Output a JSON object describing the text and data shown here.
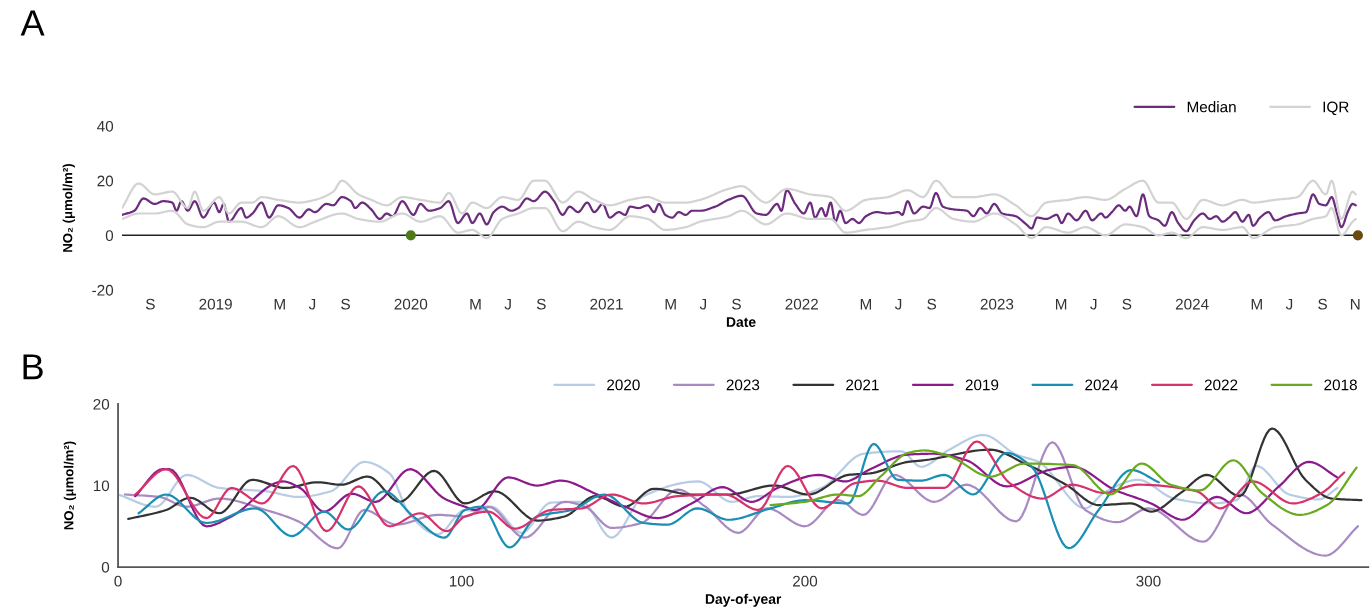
{
  "chart_data": [
    {
      "type": "line",
      "xlabel": "Date",
      "ylabel": "NO₂ (μmol/m²)",
      "annotations": [
        "A"
      ],
      "xlim": [
        "2018-07-10",
        "2024-11-10"
      ],
      "ylim": [
        -20,
        40
      ],
      "yticks": [
        -20,
        0,
        20,
        40
      ],
      "xticks": [
        {
          "value": "2018-09-01",
          "label": "S"
        },
        {
          "value": "2019-01-01",
          "label": "2019"
        },
        {
          "value": "2019-05-01",
          "label": "M"
        },
        {
          "value": "2019-07-01",
          "label": "J"
        },
        {
          "value": "2019-09-01",
          "label": "S"
        },
        {
          "value": "2020-01-01",
          "label": "2020"
        },
        {
          "value": "2020-05-01",
          "label": "M"
        },
        {
          "value": "2020-07-01",
          "label": "J"
        },
        {
          "value": "2020-09-01",
          "label": "S"
        },
        {
          "value": "2021-01-01",
          "label": "2021"
        },
        {
          "value": "2021-05-01",
          "label": "M"
        },
        {
          "value": "2021-07-01",
          "label": "J"
        },
        {
          "value": "2021-09-01",
          "label": "S"
        },
        {
          "value": "2022-01-01",
          "label": "2022"
        },
        {
          "value": "2022-05-01",
          "label": "M"
        },
        {
          "value": "2022-07-01",
          "label": "J"
        },
        {
          "value": "2022-09-01",
          "label": "S"
        },
        {
          "value": "2023-01-01",
          "label": "2023"
        },
        {
          "value": "2023-05-01",
          "label": "M"
        },
        {
          "value": "2023-07-01",
          "label": "J"
        },
        {
          "value": "2023-09-01",
          "label": "S"
        },
        {
          "value": "2024-01-01",
          "label": "2024"
        },
        {
          "value": "2024-05-01",
          "label": "M"
        },
        {
          "value": "2024-07-01",
          "label": "J"
        },
        {
          "value": "2024-09-01",
          "label": "S"
        },
        {
          "value": "2024-11-01",
          "label": "N"
        }
      ],
      "legend": "top right",
      "ref_lines": [
        {
          "axis": "y",
          "value": 0,
          "color": "#222222"
        }
      ],
      "series": [
        {
          "name": "Median",
          "color": "#6b2c7e",
          "x": [
            "2018-07-10",
            "2018-08-02",
            "2018-08-19",
            "2018-09-09",
            "2018-09-25",
            "2018-10-12",
            "2018-10-20",
            "2018-10-29",
            "2018-11-10",
            "2018-11-23",
            "2018-12-09",
            "2018-12-29",
            "2019-01-08",
            "2019-01-16",
            "2019-01-26",
            "2019-02-18",
            "2019-02-27",
            "2019-03-11",
            "2019-03-28",
            "2019-04-11",
            "2019-04-28",
            "2019-05-17",
            "2019-06-07",
            "2019-06-24",
            "2019-07-06",
            "2019-07-27",
            "2019-08-09",
            "2019-08-25",
            "2019-09-11",
            "2019-09-19",
            "2019-10-02",
            "2019-10-19",
            "2019-11-04",
            "2019-11-17",
            "2019-11-28",
            "2019-12-16",
            "2020-01-06",
            "2020-01-19",
            "2020-02-04",
            "2020-02-25",
            "2020-03-12",
            "2020-03-29",
            "2020-04-15",
            "2020-04-25",
            "2020-05-09",
            "2020-05-22",
            "2020-06-04",
            "2020-06-20",
            "2020-07-07",
            "2020-07-20",
            "2020-08-05",
            "2020-08-18",
            "2020-09-08",
            "2020-09-25",
            "2020-10-11",
            "2020-10-24",
            "2020-11-09",
            "2020-11-26",
            "2020-12-09",
            "2020-12-25",
            "2021-01-07",
            "2021-01-24",
            "2021-02-05",
            "2021-02-14",
            "2021-03-02",
            "2021-03-19",
            "2021-03-31",
            "2021-04-09",
            "2021-04-21",
            "2021-05-04",
            "2021-05-16",
            "2021-05-29",
            "2021-06-10",
            "2021-06-25",
            "2021-07-23",
            "2021-08-17",
            "2021-09-11",
            "2021-10-09",
            "2021-10-26",
            "2021-11-16",
            "2021-11-24",
            "2021-12-04",
            "2021-12-20",
            "2022-01-05",
            "2022-01-17",
            "2022-01-26",
            "2022-02-07",
            "2022-02-15",
            "2022-02-24",
            "2022-03-05",
            "2022-03-14",
            "2022-03-24",
            "2022-04-06",
            "2022-04-18",
            "2022-05-01",
            "2022-05-21",
            "2022-06-11",
            "2022-07-01",
            "2022-07-08",
            "2022-07-18",
            "2022-07-30",
            "2022-08-16",
            "2022-08-28",
            "2022-09-09",
            "2022-09-22",
            "2022-10-12",
            "2022-11-06",
            "2022-11-18",
            "2022-12-01",
            "2022-12-13",
            "2022-12-27",
            "2023-01-11",
            "2023-02-05",
            "2023-02-25",
            "2023-03-07",
            "2023-03-17",
            "2023-04-03",
            "2023-04-23",
            "2023-05-02",
            "2023-05-14",
            "2023-05-30",
            "2023-06-16",
            "2023-06-28",
            "2023-07-15",
            "2023-07-23",
            "2023-08-04",
            "2023-08-17",
            "2023-08-29",
            "2023-09-06",
            "2023-09-19",
            "2023-10-01",
            "2023-10-13",
            "2023-10-30",
            "2023-11-11",
            "2023-11-24",
            "2023-12-06",
            "2023-12-21",
            "2024-01-05",
            "2024-01-21",
            "2024-02-03",
            "2024-02-15",
            "2024-02-27",
            "2024-03-10",
            "2024-03-22",
            "2024-04-04",
            "2024-04-16",
            "2024-04-24",
            "2024-05-07",
            "2024-05-23",
            "2024-06-04",
            "2024-06-25",
            "2024-07-16",
            "2024-08-01",
            "2024-08-14",
            "2024-08-26",
            "2024-09-07",
            "2024-09-18",
            "2024-09-28",
            "2024-10-06",
            "2024-10-19",
            "2024-10-27",
            "2024-11-02"
          ],
          "values": [
            7.5,
            9,
            13.5,
            11.5,
            12.5,
            12,
            9,
            12.5,
            9,
            12.5,
            6.5,
            12,
            8.5,
            11.5,
            5,
            10,
            6.5,
            8,
            12,
            6.5,
            11,
            10,
            6.5,
            9.5,
            8.5,
            11.5,
            11,
            14,
            12.5,
            10,
            12,
            9.5,
            6,
            8,
            7,
            12.5,
            7.5,
            11.5,
            9,
            10,
            12.5,
            4.5,
            8,
            4.5,
            8,
            4,
            8.5,
            10.5,
            9,
            10,
            13.5,
            12.5,
            16,
            12.5,
            7.5,
            10.5,
            8.5,
            12,
            8.5,
            11.5,
            6.5,
            8.5,
            7.5,
            10.5,
            10,
            11,
            8.5,
            11.5,
            7.5,
            6.5,
            8.5,
            7.5,
            9,
            9,
            10.5,
            13,
            14.5,
            8,
            7.5,
            11.5,
            9,
            16.5,
            11.5,
            8,
            12,
            6.5,
            10,
            7,
            12,
            5,
            9,
            4.5,
            6,
            4.5,
            7,
            8.5,
            8,
            8.5,
            7.5,
            12.5,
            8,
            10.5,
            10,
            15.5,
            10.5,
            9.5,
            9,
            7,
            10,
            8,
            11.5,
            8,
            7,
            4,
            2.5,
            6.5,
            6,
            7.5,
            4.5,
            8,
            5.5,
            9,
            5.5,
            8,
            6.5,
            8.5,
            11,
            9,
            10.5,
            7,
            15,
            7,
            5.5,
            3.5,
            8.5,
            4.5,
            1.5,
            5.5,
            8,
            6,
            7,
            5,
            6.5,
            8.5,
            5,
            7.5,
            3.5,
            6.5,
            8.5,
            5.5,
            7,
            8,
            8.5,
            15,
            11.5,
            11,
            14,
            8,
            3,
            9,
            11.5,
            11
          ]
        },
        {
          "name": "IQR",
          "color": "#d3d3d3",
          "x": [
            "2018-07-10",
            "2018-08-10",
            "2018-09-09",
            "2018-10-12",
            "2018-11-10",
            "2018-11-23",
            "2018-12-09",
            "2019-01-08",
            "2019-01-26",
            "2019-02-18",
            "2019-03-11",
            "2019-03-28",
            "2019-04-28",
            "2019-06-07",
            "2019-07-06",
            "2019-08-09",
            "2019-08-25",
            "2019-09-25",
            "2019-10-19",
            "2019-11-17",
            "2019-12-16",
            "2020-01-19",
            "2020-02-25",
            "2020-03-12",
            "2020-04-06",
            "2020-04-25",
            "2020-05-22",
            "2020-06-20",
            "2020-07-20",
            "2020-08-18",
            "2020-09-08",
            "2020-10-11",
            "2020-11-09",
            "2020-12-09",
            "2021-01-07",
            "2021-02-14",
            "2021-03-19",
            "2021-04-21",
            "2021-05-29",
            "2021-06-25",
            "2021-08-17",
            "2021-09-11",
            "2021-10-26",
            "2021-12-04",
            "2022-01-17",
            "2022-02-24",
            "2022-03-24",
            "2022-05-01",
            "2022-06-11",
            "2022-07-18",
            "2022-08-16",
            "2022-09-09",
            "2022-10-12",
            "2022-11-18",
            "2022-12-27",
            "2023-02-05",
            "2023-03-07",
            "2023-04-03",
            "2023-05-14",
            "2023-06-16",
            "2023-07-23",
            "2023-08-29",
            "2023-10-01",
            "2023-10-30",
            "2023-11-24",
            "2023-12-21",
            "2024-01-21",
            "2024-02-27",
            "2024-04-04",
            "2024-04-24",
            "2024-06-04",
            "2024-07-16",
            "2024-08-14",
            "2024-09-07",
            "2024-09-18",
            "2024-10-06",
            "2024-10-27",
            "2024-11-02"
          ],
          "values": [
            10,
            19,
            15,
            16,
            10,
            16,
            9,
            14,
            8,
            12,
            12,
            14,
            13,
            12,
            13,
            16,
            20,
            15,
            13,
            11,
            14,
            13,
            12,
            15.5,
            8,
            12,
            10,
            14,
            13,
            20,
            20,
            12,
            16,
            13,
            11,
            13,
            14,
            12,
            12,
            13,
            17,
            18,
            12,
            17,
            15,
            14,
            9,
            13,
            14,
            16.5,
            14,
            20,
            14,
            14,
            15,
            11,
            7,
            12,
            13,
            14,
            13,
            17,
            20,
            12,
            12,
            6,
            13,
            11,
            13,
            12,
            13,
            14,
            20,
            15,
            20,
            6,
            16,
            15
          ]
        },
        {
          "color": "#d3d3d3",
          "x": [
            "2018-07-10",
            "2018-08-10",
            "2018-09-09",
            "2018-10-12",
            "2018-11-10",
            "2018-12-09",
            "2019-01-08",
            "2019-02-18",
            "2019-03-28",
            "2019-04-28",
            "2019-06-07",
            "2019-07-06",
            "2019-08-25",
            "2019-09-25",
            "2019-11-04",
            "2019-12-16",
            "2020-01-19",
            "2020-02-25",
            "2020-03-29",
            "2020-04-25",
            "2020-05-22",
            "2020-06-20",
            "2020-07-20",
            "2020-08-18",
            "2020-09-08",
            "2020-10-11",
            "2020-11-09",
            "2020-12-09",
            "2021-01-07",
            "2021-02-14",
            "2021-03-19",
            "2021-04-21",
            "2021-05-29",
            "2021-06-25",
            "2021-08-17",
            "2021-09-11",
            "2021-10-26",
            "2021-12-04",
            "2022-01-17",
            "2022-02-24",
            "2022-03-24",
            "2022-05-01",
            "2022-06-11",
            "2022-07-18",
            "2022-08-16",
            "2022-09-09",
            "2022-10-12",
            "2022-11-18",
            "2022-12-27",
            "2023-02-05",
            "2023-03-07",
            "2023-04-03",
            "2023-05-14",
            "2023-06-16",
            "2023-07-23",
            "2023-08-29",
            "2023-10-01",
            "2023-10-30",
            "2023-11-24",
            "2023-12-21",
            "2024-01-21",
            "2024-02-27",
            "2024-04-04",
            "2024-04-24",
            "2024-06-04",
            "2024-07-16",
            "2024-08-14",
            "2024-09-07",
            "2024-09-18",
            "2024-10-06",
            "2024-10-27",
            "2024-11-02"
          ],
          "values": [
            6,
            8,
            8,
            9,
            4,
            3,
            5,
            5,
            3,
            7,
            3,
            5,
            8,
            6,
            5,
            8,
            5,
            7,
            1,
            2,
            -1,
            6,
            8,
            10,
            10,
            1.5,
            5,
            3,
            2,
            7,
            6,
            2,
            3,
            5,
            7,
            9,
            4,
            8,
            6,
            6,
            1,
            2,
            3,
            5,
            6,
            10,
            6,
            5,
            8,
            4,
            -1,
            3,
            1,
            3,
            0,
            4,
            3,
            0,
            1,
            -1,
            3,
            2,
            3,
            -1,
            3,
            4,
            6,
            7,
            10,
            0,
            5,
            6
          ]
        },
        {
          "type": "scatter",
          "marker": "circle",
          "colors": [
            "#4f7a1a",
            "#6b4a10"
          ],
          "x": [
            "2020-01-01",
            "2024-11-06"
          ],
          "values": [
            0,
            0
          ]
        }
      ]
    },
    {
      "type": "line",
      "xlabel": "Day-of-year",
      "ylabel": "NO₂ (μmol/m²)",
      "annotations": [
        "B"
      ],
      "xlim": [
        0,
        364
      ],
      "xticks": [
        0,
        100,
        200,
        300
      ],
      "ylim": [
        0,
        20
      ],
      "yticks": [
        0,
        10,
        20
      ],
      "legend": "top right",
      "series": [
        {
          "name": "2020",
          "color": "#b8cce4",
          "x": [
            0,
            11,
            20,
            29.5,
            43,
            52.5,
            62,
            71.7,
            79,
            85,
            93,
            101,
            105,
            108.7,
            117.5,
            126,
            135,
            143.7,
            153,
            169,
            178.6,
            186.4,
            195,
            204.8,
            217,
            228,
            233.8,
            242,
            252,
            261.5,
            268,
            281.6,
            287,
            297,
            307.5,
            318,
            325.6,
            331.4,
            341,
            349.6,
            355
          ],
          "values": [
            8.9,
            7.4,
            11.3,
            9.7,
            9.3,
            8.6,
            9.3,
            12.9,
            11.5,
            6.4,
            4,
            7,
            6.8,
            7.4,
            4.2,
            7.9,
            8,
            3.6,
            8.7,
            10.5,
            8,
            8.7,
            8.6,
            9.7,
            13.9,
            14.2,
            12.3,
            14.4,
            16.2,
            13.8,
            12.9,
            7.2,
            9.1,
            10.7,
            8.4,
            7.8,
            8.2,
            12.4,
            8.9,
            8.3,
            9.7
          ]
        },
        {
          "name": "2023",
          "color": "#a88bc2",
          "x": [
            2,
            12,
            20,
            29.5,
            43,
            52.5,
            64,
            71.7,
            81,
            93,
            101,
            107.8,
            118.4,
            130,
            136,
            143.7,
            152.4,
            163,
            171,
            180.6,
            189,
            200,
            209.7,
            217,
            226,
            237.6,
            247,
            261.5,
            272,
            281.6,
            291,
            300,
            316,
            326.6,
            336,
            351.5,
            361
          ],
          "values": [
            8.9,
            8.6,
            7.4,
            8.4,
            7,
            5.6,
            2.3,
            7,
            5.2,
            6.4,
            6.2,
            7.4,
            3.6,
            8,
            7.4,
            4.8,
            5.4,
            9.5,
            7.4,
            4.2,
            7.2,
            5,
            8.2,
            6.4,
            11.3,
            8,
            10.1,
            5.6,
            15.3,
            7,
            5.5,
            7.2,
            3.1,
            8.9,
            5.2,
            1.4,
            5
          ]
        },
        {
          "name": "2021",
          "color": "#333333",
          "x": [
            3,
            14,
            21,
            29.5,
            39,
            48.7,
            58,
            65,
            72.7,
            82,
            92,
            101,
            109.7,
            122,
            130,
            139,
            147.6,
            156,
            167,
            177.7,
            191,
            201,
            212.6,
            219,
            230,
            234.7,
            254,
            264,
            276,
            285.5,
            295,
            300.8,
            309.4,
            317,
            326.6,
            336,
            345.7,
            353.4,
            362
          ],
          "values": [
            5.9,
            7,
            8.5,
            6.6,
            10.7,
            9.7,
            10.4,
            10.1,
            11.1,
            8,
            11.8,
            7.8,
            9.3,
            5.7,
            6.2,
            8.7,
            7.4,
            9.6,
            8.9,
            8.9,
            10,
            8.9,
            11.3,
            11.5,
            12.9,
            13.1,
            14.4,
            12.7,
            10.1,
            7.6,
            7.8,
            6.8,
            9.1,
            11.3,
            8.7,
            17,
            10.7,
            8.4,
            8.2
          ]
        },
        {
          "name": "2019",
          "color": "#8b1a8b",
          "x": [
            5,
            13,
            15,
            25.7,
            33,
            48,
            53,
            60,
            68,
            75,
            85,
            95,
            101,
            104,
            113.6,
            122,
            129,
            139,
            147.6,
            157,
            167,
            176,
            184.5,
            192,
            204,
            211.7,
            219,
            230,
            237.6,
            247,
            258.7,
            271,
            278,
            290,
            300.8,
            310,
            320,
            328.5,
            338,
            346.7,
            355
          ],
          "values": [
            8.7,
            12,
            12,
            5,
            6.2,
            10.5,
            9.7,
            6.8,
            9,
            8,
            12,
            8.4,
            7.4,
            7,
            11,
            10,
            10.6,
            9,
            7.4,
            6,
            7.8,
            9.8,
            8,
            9.7,
            11.3,
            10.5,
            12,
            13.8,
            13.9,
            13.1,
            9.9,
            11.9,
            12.3,
            9.5,
            7.8,
            5.8,
            8.6,
            6.6,
            9.9,
            12.9,
            11
          ]
        },
        {
          "name": "2024",
          "color": "#1a8fb4",
          "x": [
            6,
            14,
            25.7,
            40,
            50.6,
            60,
            67,
            77.5,
            86,
            95,
            101,
            105.8,
            114,
            122,
            132,
            141.7,
            153,
            160,
            168.7,
            177.7,
            190,
            200,
            212.6,
            220,
            227,
            233.8,
            240.5,
            249,
            258.7,
            266,
            276.8,
            285.5,
            295,
            303
          ],
          "values": [
            6.6,
            8.9,
            5.4,
            7.2,
            3.8,
            6.8,
            4.6,
            9.3,
            6.2,
            3.6,
            7,
            7.4,
            2.4,
            6.2,
            7,
            8.9,
            5.4,
            5.2,
            7.2,
            5.8,
            7.2,
            8.2,
            7.8,
            15.1,
            10.7,
            10.6,
            11.3,
            8.9,
            14,
            12.3,
            2.3,
            7,
            11.9,
            10.4
          ]
        },
        {
          "name": "2022",
          "color": "#d6336c",
          "x": [
            5,
            14,
            25.7,
            33,
            42,
            51,
            60.7,
            70,
            79,
            88,
            95.7,
            101,
            107.8,
            115.5,
            126,
            135,
            143.7,
            153,
            163,
            176.7,
            186.4,
            195,
            204.8,
            214.6,
            221,
            230,
            240.5,
            250,
            259.6,
            269,
            277.8,
            287,
            297,
            314,
            321,
            330.4,
            342,
            350.5,
            357
          ],
          "values": [
            8.9,
            12,
            6,
            9.7,
            7.8,
            12.4,
            4.4,
            9.9,
            5,
            6.6,
            4.4,
            6.2,
            6.8,
            4.7,
            7,
            7.2,
            8.9,
            7.8,
            8.7,
            8.9,
            7,
            12.4,
            7.2,
            10.3,
            10.6,
            9.7,
            9.7,
            15.4,
            10.3,
            8.4,
            10.1,
            9.1,
            10.1,
            9.3,
            7.2,
            10.5,
            7.8,
            9.1,
            11.6
          ]
        },
        {
          "name": "2018",
          "color": "#6aaa1e",
          "x": [
            190,
            200,
            209.7,
            215.5,
            222,
            230,
            234.7,
            242,
            254,
            264,
            278,
            289,
            298,
            306.5,
            315,
            324.7,
            333,
            344,
            352,
            360.6
          ],
          "values": [
            7.6,
            8,
            8.9,
            8.7,
            11.1,
            14,
            14.3,
            13.6,
            11.1,
            12.7,
            12.5,
            8.9,
            12.7,
            10.1,
            9.4,
            13.1,
            9.1,
            6.4,
            7.6,
            12.2
          ]
        }
      ]
    }
  ]
}
